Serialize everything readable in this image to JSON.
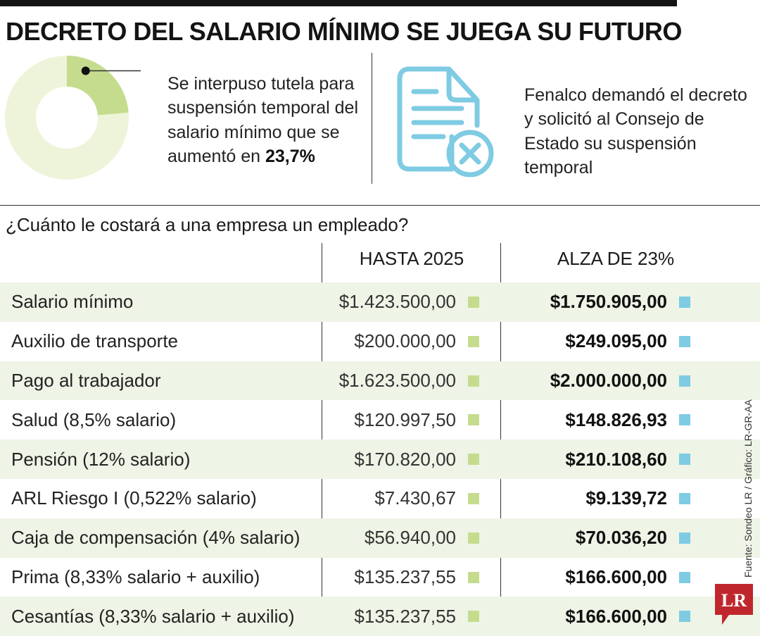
{
  "title": "DECRETO DEL SALARIO MÍNIMO SE JUEGA SU FUTURO",
  "left_note": {
    "text": "Se interpuso tutela para suspensión temporal del salario mínimo que se aumentó en ",
    "value_text": "23,7%"
  },
  "right_note": "Fenalco demandó el decreto y solicitó al Consejo de Estado su suspensión temporal",
  "donut": {
    "percent": 23.7,
    "highlight_color": "#c5dc8e",
    "base_color": "#eef4d9",
    "marker_color": "#111111"
  },
  "question": "¿Cuánto le costará a una empresa un empleado?",
  "columns": {
    "hasta_2025": "HASTA 2025",
    "alza": "ALZA DE 23%"
  },
  "colors": {
    "series_2025": "#c5dc8e",
    "series_alza": "#7ecbe3",
    "row_shade": "#eef4e6",
    "icon": "#7ecbe3",
    "logo": "#c0272d"
  },
  "chart_data": {
    "type": "table",
    "title": "¿Cuánto le costará a una empresa un empleado?",
    "columns": [
      "HASTA 2025",
      "ALZA DE 23%"
    ],
    "rows": [
      {
        "label": "Salario mínimo",
        "hasta_2025": "$1.423.500,00",
        "alza": "$1.750.905,00"
      },
      {
        "label": "Auxilio de transporte",
        "hasta_2025": "$200.000,00",
        "alza": "$249.095,00"
      },
      {
        "label": "Pago al trabajador",
        "hasta_2025": "$1.623.500,00",
        "alza": "$2.000.000,00"
      },
      {
        "label": "Salud (8,5% salario)",
        "hasta_2025": "$120.997,50",
        "alza": "$148.826,93"
      },
      {
        "label": "Pensión (12% salario)",
        "hasta_2025": "$170.820,00",
        "alza": "$210.108,60"
      },
      {
        "label": "ARL Riesgo I (0,522% salario)",
        "hasta_2025": "$7.430,67",
        "alza": "$9.139,72"
      },
      {
        "label": "Caja de compensación (4% salario)",
        "hasta_2025": "$56.940,00",
        "alza": "$70.036,20"
      },
      {
        "label": "Prima (8,33% salario + auxilio)",
        "hasta_2025": "$135.237,55",
        "alza": "$166.600,00"
      },
      {
        "label": "Cesantías (8,33% salario + auxilio)",
        "hasta_2025": "$135.237,55",
        "alza": "$166.600,00"
      }
    ]
  },
  "source": "Fuente: Sondeo LR / Gráfico: LR-GR-AA",
  "logo_text": "LR",
  "icons": {
    "document": "document-cancel-icon",
    "logo": "lr-logo-icon"
  }
}
